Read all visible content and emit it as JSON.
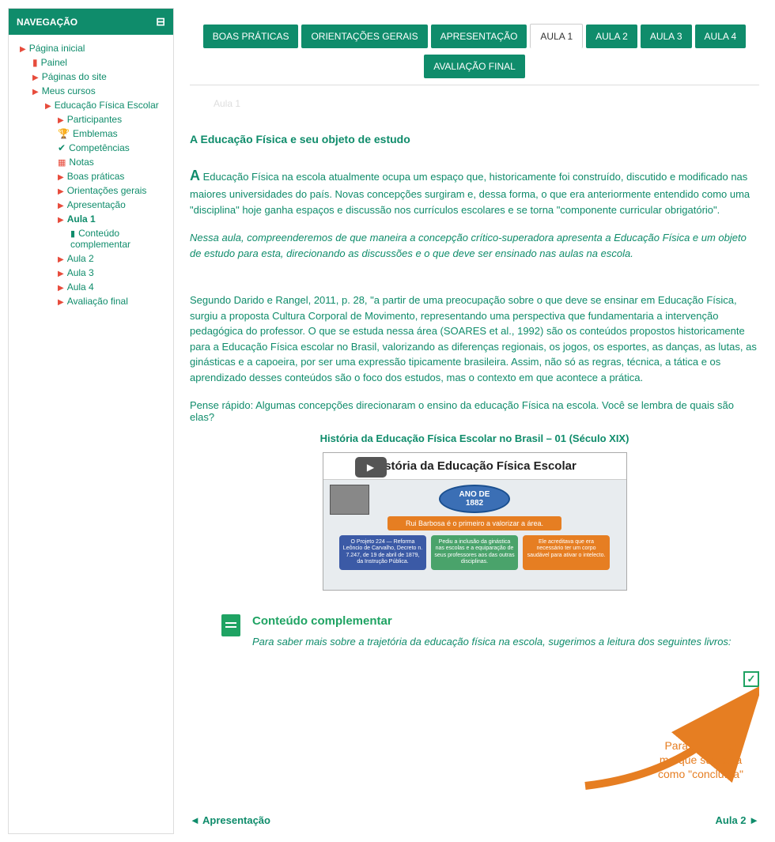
{
  "colors": {
    "brand": "#0f8c6b",
    "accent_orange": "#e67e22",
    "accent_green": "#1fa363",
    "tri_red": "#e74c3c"
  },
  "sidebar": {
    "title": "NAVEGAÇÃO",
    "items": [
      {
        "label": "Página inicial",
        "level": 0,
        "icon": "tri",
        "bold": false
      },
      {
        "label": "Painel",
        "level": 1,
        "icon": "page",
        "bold": false
      },
      {
        "label": "Páginas do site",
        "level": 1,
        "icon": "tri",
        "bold": false
      },
      {
        "label": "Meus cursos",
        "level": 1,
        "icon": "tri",
        "bold": false
      },
      {
        "label": "Educação Física Escolar",
        "level": 2,
        "icon": "tri",
        "bold": false
      },
      {
        "label": "Participantes",
        "level": 3,
        "icon": "tri",
        "bold": false
      },
      {
        "label": "Emblemas",
        "level": 3,
        "icon": "trophy",
        "bold": false
      },
      {
        "label": "Competências",
        "level": 3,
        "icon": "check",
        "bold": false
      },
      {
        "label": "Notas",
        "level": 3,
        "icon": "grid",
        "bold": false
      },
      {
        "label": "Boas práticas",
        "level": 3,
        "icon": "tri",
        "bold": false
      },
      {
        "label": "Orientações gerais",
        "level": 3,
        "icon": "tri",
        "bold": false
      },
      {
        "label": "Apresentação",
        "level": 3,
        "icon": "tri",
        "bold": false
      },
      {
        "label": "Aula 1",
        "level": 3,
        "icon": "tri",
        "bold": true
      },
      {
        "label": "Conteúdo complementar",
        "level": 4,
        "icon": "doc",
        "bold": false
      },
      {
        "label": "Aula 2",
        "level": 3,
        "icon": "tri",
        "bold": false
      },
      {
        "label": "Aula 3",
        "level": 3,
        "icon": "tri",
        "bold": false
      },
      {
        "label": "Aula 4",
        "level": 3,
        "icon": "tri",
        "bold": false
      },
      {
        "label": "Avaliação final",
        "level": 3,
        "icon": "tri",
        "bold": false
      }
    ]
  },
  "tabs": {
    "row1": [
      {
        "label": "BOAS PRÁTICAS",
        "active": false
      },
      {
        "label": "ORIENTAÇÕES GERAIS",
        "active": false
      },
      {
        "label": "APRESENTAÇÃO",
        "active": false
      },
      {
        "label": "AULA 1",
        "active": true
      },
      {
        "label": "AULA 2",
        "active": false
      },
      {
        "label": "AULA 3",
        "active": false
      },
      {
        "label": "AULA 4",
        "active": false
      }
    ],
    "row2": [
      {
        "label": "AVALIAÇÃO FINAL",
        "active": false
      }
    ]
  },
  "content": {
    "aula_label": "Aula 1",
    "section_title": "A Educação Física e seu objeto de estudo",
    "p1_first": "A",
    "p1_rest": " Educação Física na escola atualmente ocupa um espaço que, historicamente foi construído, discutido e modificado nas maiores universidades do país. Novas concepções surgiram e, dessa forma, o que era anteriormente entendido como uma \"disciplina\" hoje ganha espaços e discussão nos currículos escolares e se torna \"componente curricular obrigatório\".",
    "p2": "Nessa aula, compreenderemos de que maneira a concepção crítico-superadora apresenta a Educação Física e um objeto de estudo para esta, direcionando as discussões e o que deve ser ensinado nas aulas na escola.",
    "p3": "Segundo Darido e Rangel, 2011, p. 28, \"a partir de uma preocupação sobre o que deve se ensinar em Educação Física, surgiu a proposta Cultura Corporal de Movimento, representando uma perspectiva que fundamentaria a intervenção pedagógica do professor. O que se estuda nessa área (SOARES et al., 1992) são os conteúdos propostos historicamente para a Educação Física escolar no Brasil, valorizando as diferenças regionais, os jogos, os esportes, as danças, as lutas, as ginásticas e a capoeira, por ser uma expressão tipicamente brasileira. Assim, não só as regras, técnica, a tática e os aprendizado desses conteúdos são o foco dos estudos, mas o contexto em que acontece a prática.",
    "quick": "Pense rápido: Algumas concepções direcionaram o ensino da educação Física na escola. Você se lembra de quais são elas?",
    "video_title": "História da Educação Física Escolar no Brasil – 01 (Século XIX)",
    "video": {
      "heading_prefix": "História",
      "heading": "da Educação Física Escolar",
      "oval_line1": "ANO DE",
      "oval_line2": "1882",
      "banner": "Rui Barbosa é o primeiro a valorizar a área.",
      "box1": "O Projeto 224 — Reforma Leôncio de Carvalho, Decreto n. 7.247, de 19 de abril de 1879, da Instrução Pública.",
      "box2": "Pediu a inclusão da ginástica nas escolas e a equiparação de seus professores aos das outras disciplinas.",
      "box3": "Ele acreditava que era necessário ter um corpo saudável para ativar o intelecto."
    },
    "supplement_title": "Conteúdo complementar",
    "supplement_text": "Para saber mais sobre a trajetória da educação física na escola, sugerimos a leitura dos seguintes livros:",
    "callout_line1": "Para continuar",
    "callout_line2": "marque sua aula",
    "callout_line3": "como \"concluída\""
  },
  "footer": {
    "prev": "Apresentação",
    "next": "Aula 2"
  }
}
